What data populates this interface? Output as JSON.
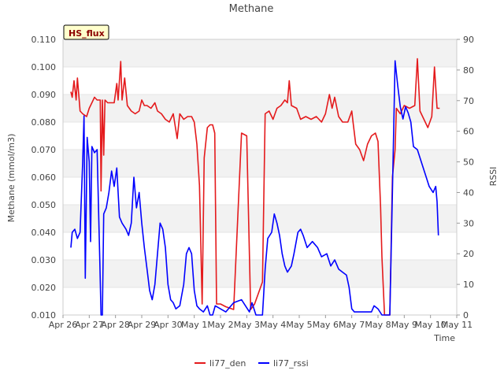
{
  "chart_data": {
    "type": "line",
    "title": "Methane",
    "xlabel": "Time",
    "ylabel_left": "Methane (mmol/m3)",
    "ylabel_right": "RSSI",
    "badge": "HS_flux",
    "x_ticks": [
      "Apr 26",
      "Apr 27",
      "Apr 28",
      "Apr 29",
      "Apr 30",
      "May 1",
      "May 2",
      "May 3",
      "May 4",
      "May 5",
      "May 6",
      "May 7",
      "May 8",
      "May 9",
      "May 10",
      "May 11"
    ],
    "y_left_ticks": [
      "0.010",
      "0.020",
      "0.030",
      "0.040",
      "0.050",
      "0.060",
      "0.070",
      "0.080",
      "0.090",
      "0.100",
      "0.110"
    ],
    "y_right_ticks": [
      "0",
      "10",
      "20",
      "30",
      "40",
      "50",
      "60",
      "70",
      "80",
      "90"
    ],
    "x_range_days": [
      0,
      15
    ],
    "ylim_left": [
      0.01,
      0.11
    ],
    "ylim_right": [
      0,
      90
    ],
    "grid": "horizontal bands",
    "legend_position": "bottom",
    "series": [
      {
        "name": "li77_den",
        "axis": "left",
        "color": "#e41a1c",
        "points": [
          [
            0.3,
            0.091
          ],
          [
            0.35,
            0.089
          ],
          [
            0.42,
            0.095
          ],
          [
            0.5,
            0.088
          ],
          [
            0.55,
            0.096
          ],
          [
            0.65,
            0.084
          ],
          [
            0.75,
            0.083
          ],
          [
            0.9,
            0.082
          ],
          [
            1.0,
            0.085
          ],
          [
            1.1,
            0.087
          ],
          [
            1.2,
            0.089
          ],
          [
            1.3,
            0.088
          ],
          [
            1.42,
            0.088
          ],
          [
            1.45,
            0.055
          ],
          [
            1.5,
            0.088
          ],
          [
            1.55,
            0.068
          ],
          [
            1.6,
            0.088
          ],
          [
            1.7,
            0.087
          ],
          [
            1.8,
            0.087
          ],
          [
            1.95,
            0.087
          ],
          [
            2.05,
            0.094
          ],
          [
            2.1,
            0.088
          ],
          [
            2.2,
            0.102
          ],
          [
            2.25,
            0.088
          ],
          [
            2.35,
            0.096
          ],
          [
            2.45,
            0.086
          ],
          [
            2.6,
            0.084
          ],
          [
            2.75,
            0.083
          ],
          [
            2.9,
            0.084
          ],
          [
            3.0,
            0.088
          ],
          [
            3.1,
            0.086
          ],
          [
            3.2,
            0.086
          ],
          [
            3.35,
            0.085
          ],
          [
            3.5,
            0.087
          ],
          [
            3.6,
            0.084
          ],
          [
            3.75,
            0.083
          ],
          [
            3.9,
            0.081
          ],
          [
            4.05,
            0.08
          ],
          [
            4.2,
            0.083
          ],
          [
            4.35,
            0.074
          ],
          [
            4.45,
            0.083
          ],
          [
            4.6,
            0.081
          ],
          [
            4.75,
            0.082
          ],
          [
            4.9,
            0.082
          ],
          [
            5.0,
            0.08
          ],
          [
            5.1,
            0.072
          ],
          [
            5.2,
            0.057
          ],
          [
            5.3,
            0.014
          ],
          [
            5.38,
            0.067
          ],
          [
            5.5,
            0.078
          ],
          [
            5.6,
            0.079
          ],
          [
            5.7,
            0.079
          ],
          [
            5.78,
            0.076
          ],
          [
            5.85,
            0.014
          ],
          [
            6.0,
            0.014
          ],
          [
            6.2,
            0.013
          ],
          [
            6.5,
            0.012
          ],
          [
            6.8,
            0.076
          ],
          [
            7.0,
            0.075
          ],
          [
            7.15,
            0.012
          ],
          [
            7.3,
            0.014
          ],
          [
            7.6,
            0.022
          ],
          [
            7.7,
            0.083
          ],
          [
            7.85,
            0.084
          ],
          [
            8.0,
            0.081
          ],
          [
            8.15,
            0.085
          ],
          [
            8.3,
            0.086
          ],
          [
            8.45,
            0.088
          ],
          [
            8.55,
            0.087
          ],
          [
            8.62,
            0.095
          ],
          [
            8.7,
            0.086
          ],
          [
            8.9,
            0.085
          ],
          [
            9.05,
            0.081
          ],
          [
            9.25,
            0.082
          ],
          [
            9.45,
            0.081
          ],
          [
            9.65,
            0.082
          ],
          [
            9.85,
            0.08
          ],
          [
            10.0,
            0.083
          ],
          [
            10.15,
            0.09
          ],
          [
            10.25,
            0.085
          ],
          [
            10.35,
            0.089
          ],
          [
            10.5,
            0.082
          ],
          [
            10.65,
            0.08
          ],
          [
            10.85,
            0.08
          ],
          [
            11.0,
            0.084
          ],
          [
            11.05,
            0.08
          ],
          [
            11.15,
            0.072
          ],
          [
            11.3,
            0.07
          ],
          [
            11.45,
            0.066
          ],
          [
            11.6,
            0.072
          ],
          [
            11.75,
            0.075
          ],
          [
            11.9,
            0.076
          ],
          [
            12.0,
            0.073
          ],
          [
            12.1,
            0.049
          ],
          [
            12.15,
            0.031
          ],
          [
            12.25,
            0.01
          ],
          [
            12.45,
            0.01
          ],
          [
            12.55,
            0.06
          ],
          [
            12.65,
            0.07
          ],
          [
            12.7,
            0.085
          ],
          [
            12.85,
            0.083
          ],
          [
            13.0,
            0.086
          ],
          [
            13.2,
            0.085
          ],
          [
            13.4,
            0.086
          ],
          [
            13.5,
            0.103
          ],
          [
            13.6,
            0.084
          ],
          [
            13.75,
            0.081
          ],
          [
            13.9,
            0.078
          ],
          [
            14.05,
            0.082
          ],
          [
            14.15,
            0.1
          ],
          [
            14.25,
            0.085
          ],
          [
            14.35,
            0.085
          ]
        ]
      },
      {
        "name": "li77_rssi",
        "axis": "right",
        "color": "#0000ff",
        "points": [
          [
            0.3,
            22
          ],
          [
            0.35,
            27
          ],
          [
            0.45,
            28
          ],
          [
            0.55,
            25
          ],
          [
            0.65,
            27
          ],
          [
            0.75,
            50
          ],
          [
            0.8,
            65
          ],
          [
            0.85,
            12
          ],
          [
            0.92,
            58
          ],
          [
            1.0,
            50
          ],
          [
            1.05,
            24
          ],
          [
            1.1,
            55
          ],
          [
            1.2,
            53
          ],
          [
            1.3,
            54
          ],
          [
            1.4,
            18
          ],
          [
            1.45,
            0
          ],
          [
            1.5,
            0
          ],
          [
            1.55,
            33
          ],
          [
            1.65,
            35
          ],
          [
            1.75,
            40
          ],
          [
            1.85,
            47
          ],
          [
            1.95,
            42
          ],
          [
            2.05,
            48
          ],
          [
            2.15,
            32
          ],
          [
            2.25,
            30
          ],
          [
            2.4,
            28
          ],
          [
            2.5,
            26
          ],
          [
            2.6,
            30
          ],
          [
            2.7,
            45
          ],
          [
            2.8,
            35
          ],
          [
            2.9,
            40
          ],
          [
            3.0,
            30
          ],
          [
            3.1,
            22
          ],
          [
            3.2,
            15
          ],
          [
            3.3,
            8
          ],
          [
            3.4,
            5
          ],
          [
            3.5,
            10
          ],
          [
            3.6,
            20
          ],
          [
            3.7,
            30
          ],
          [
            3.8,
            28
          ],
          [
            3.9,
            22
          ],
          [
            4.0,
            10
          ],
          [
            4.1,
            5
          ],
          [
            4.2,
            4
          ],
          [
            4.3,
            2
          ],
          [
            4.45,
            3
          ],
          [
            4.6,
            10
          ],
          [
            4.7,
            20
          ],
          [
            4.8,
            22
          ],
          [
            4.9,
            20
          ],
          [
            5.0,
            8
          ],
          [
            5.1,
            3
          ],
          [
            5.2,
            2
          ],
          [
            5.35,
            1
          ],
          [
            5.5,
            3
          ],
          [
            5.6,
            0
          ],
          [
            5.7,
            0
          ],
          [
            5.8,
            3
          ],
          [
            6.0,
            2
          ],
          [
            6.2,
            1
          ],
          [
            6.5,
            4
          ],
          [
            6.8,
            5
          ],
          [
            6.95,
            3
          ],
          [
            7.1,
            1
          ],
          [
            7.2,
            4
          ],
          [
            7.35,
            0
          ],
          [
            7.6,
            0
          ],
          [
            7.7,
            15
          ],
          [
            7.8,
            25
          ],
          [
            7.95,
            27
          ],
          [
            8.05,
            33
          ],
          [
            8.15,
            30
          ],
          [
            8.25,
            26
          ],
          [
            8.35,
            20
          ],
          [
            8.45,
            16
          ],
          [
            8.55,
            14
          ],
          [
            8.7,
            16
          ],
          [
            8.8,
            20
          ],
          [
            8.95,
            27
          ],
          [
            9.05,
            28
          ],
          [
            9.15,
            26
          ],
          [
            9.3,
            22
          ],
          [
            9.5,
            24
          ],
          [
            9.7,
            22
          ],
          [
            9.85,
            19
          ],
          [
            10.05,
            20
          ],
          [
            10.2,
            16
          ],
          [
            10.35,
            18
          ],
          [
            10.5,
            15
          ],
          [
            10.65,
            14
          ],
          [
            10.8,
            13
          ],
          [
            10.9,
            9
          ],
          [
            11.0,
            2
          ],
          [
            11.1,
            1
          ],
          [
            11.4,
            1
          ],
          [
            11.6,
            1
          ],
          [
            11.75,
            1
          ],
          [
            11.85,
            3
          ],
          [
            12.0,
            2
          ],
          [
            12.15,
            0
          ],
          [
            12.45,
            0
          ],
          [
            12.55,
            40
          ],
          [
            12.65,
            83
          ],
          [
            12.75,
            75
          ],
          [
            12.85,
            68
          ],
          [
            12.95,
            64
          ],
          [
            13.05,
            68
          ],
          [
            13.15,
            66
          ],
          [
            13.25,
            63
          ],
          [
            13.35,
            55
          ],
          [
            13.5,
            54
          ],
          [
            13.65,
            50
          ],
          [
            13.8,
            46
          ],
          [
            13.95,
            42
          ],
          [
            14.1,
            40
          ],
          [
            14.2,
            42
          ],
          [
            14.25,
            37
          ],
          [
            14.3,
            26
          ]
        ]
      }
    ]
  }
}
